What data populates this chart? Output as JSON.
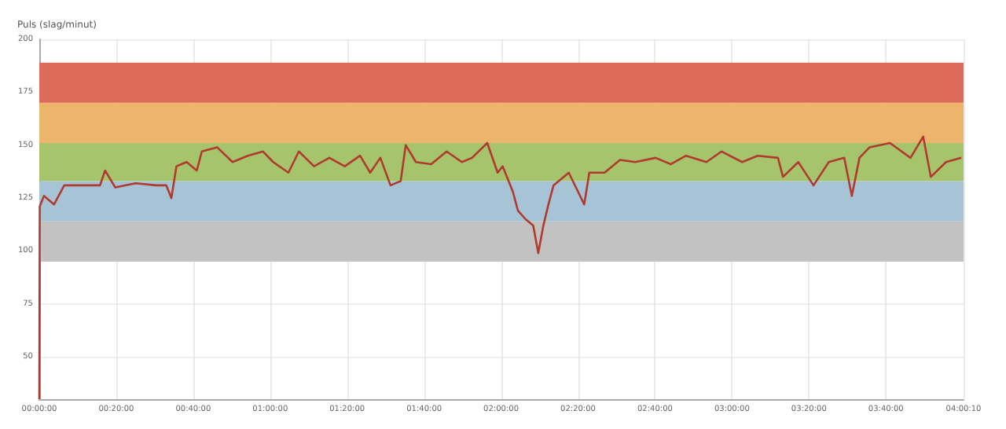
{
  "chart_data": {
    "type": "line",
    "ylabel": "Puls (slag/minut)",
    "xlim": [
      0,
      4.0028
    ],
    "xticks": [
      {
        "value": 0,
        "label": "00:00:00"
      },
      {
        "value": 0.3333,
        "label": "00:20:00"
      },
      {
        "value": 0.6667,
        "label": "00:40:00"
      },
      {
        "value": 1,
        "label": "01:00:00"
      },
      {
        "value": 1.3333,
        "label": "01:20:00"
      },
      {
        "value": 1.6667,
        "label": "01:40:00"
      },
      {
        "value": 2,
        "label": "02:00:00"
      },
      {
        "value": 2.3333,
        "label": "02:20:00"
      },
      {
        "value": 2.6667,
        "label": "02:40:00"
      },
      {
        "value": 3,
        "label": "03:00:00"
      },
      {
        "value": 3.3333,
        "label": "03:20:00"
      },
      {
        "value": 3.6667,
        "label": "03:40:00"
      },
      {
        "value": 4.0028,
        "label": "04:00:10"
      }
    ],
    "ylim": [
      30,
      200
    ],
    "yticks": [
      50,
      75,
      100,
      125,
      150,
      175,
      200
    ],
    "grid": true,
    "marker": "none",
    "line_style": "solid",
    "bands": [
      {
        "axis": "y",
        "from": 95,
        "to": 114,
        "color": "#c2c2c2"
      },
      {
        "axis": "y",
        "from": 114,
        "to": 133,
        "color": "#a6c4d6"
      },
      {
        "axis": "y",
        "from": 133,
        "to": 151,
        "color": "#a6c46c"
      },
      {
        "axis": "y",
        "from": 151,
        "to": 170,
        "color": "#ecb56b"
      },
      {
        "axis": "y",
        "from": 170,
        "to": 189,
        "color": "#dc6b5c"
      }
    ],
    "series": [
      {
        "color": "#b03a2e",
        "x": [
          0,
          0.002,
          0.02,
          0.064,
          0.108,
          0.174,
          0.263,
          0.285,
          0.329,
          0.417,
          0.505,
          0.55,
          0.572,
          0.594,
          0.638,
          0.682,
          0.704,
          0.77,
          0.837,
          0.903,
          0.969,
          1.013,
          1.079,
          1.124,
          1.19,
          1.256,
          1.323,
          1.389,
          1.433,
          1.477,
          1.521,
          1.565,
          1.587,
          1.631,
          1.697,
          1.764,
          1.83,
          1.874,
          1.94,
          1.985,
          2.007,
          2.051,
          2.073,
          2.106,
          2.139,
          2.161,
          2.183,
          2.205,
          2.227,
          2.293,
          2.36,
          2.382,
          2.448,
          2.515,
          2.581,
          2.669,
          2.735,
          2.801,
          2.889,
          2.955,
          3.044,
          3.111,
          3.199,
          3.221,
          3.287,
          3.353,
          3.419,
          3.486,
          3.519,
          3.552,
          3.596,
          3.684,
          3.773,
          3.828,
          3.861,
          3.927,
          3.993
        ],
        "values": [
          30,
          121,
          126,
          122,
          131,
          131,
          131,
          138,
          130,
          132,
          131,
          131,
          125,
          140,
          142,
          138,
          147,
          149,
          142,
          145,
          147,
          142,
          137,
          147,
          140,
          144,
          140,
          145,
          137,
          144,
          131,
          133,
          150,
          142,
          141,
          147,
          142,
          144,
          151,
          137,
          140,
          128,
          119,
          115,
          112,
          99,
          112,
          122,
          131,
          137,
          122,
          137,
          137,
          143,
          142,
          144,
          141,
          145,
          142,
          147,
          142,
          145,
          144,
          135,
          142,
          131,
          142,
          144,
          126,
          144,
          149,
          151,
          144,
          154,
          135,
          142,
          144
        ]
      }
    ]
  }
}
